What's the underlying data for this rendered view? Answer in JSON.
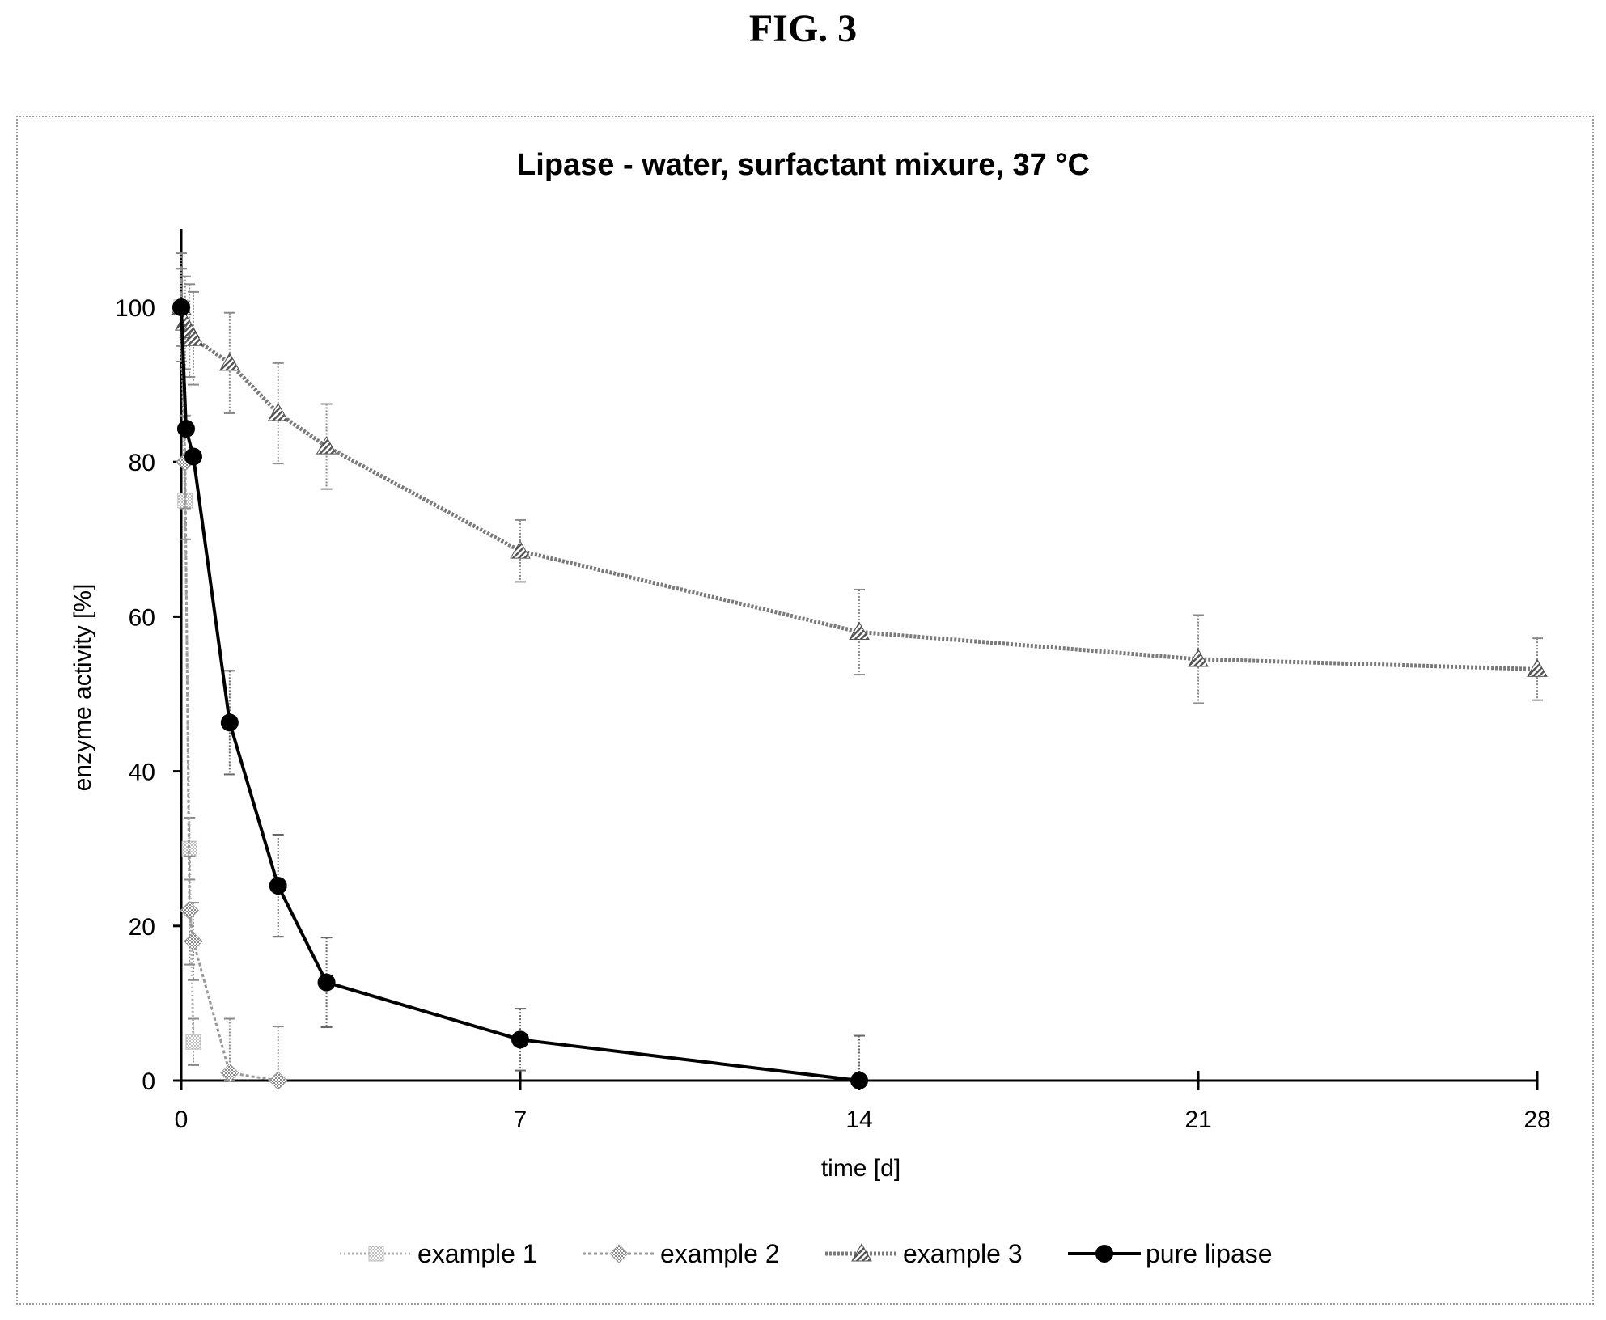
{
  "figure_label": "FIG. 3",
  "chart_data": {
    "type": "line",
    "title": "Lipase - water, surfactant mixure, 37 °C",
    "xlabel": "time [d]",
    "ylabel": "enzyme activity [%]",
    "xlim": [
      0,
      28
    ],
    "ylim": [
      0,
      110
    ],
    "xticks": [
      0,
      7,
      14,
      21,
      28
    ],
    "yticks": [
      0,
      20,
      40,
      60,
      80,
      100
    ],
    "legend_position": "bottom",
    "grid": false,
    "series": [
      {
        "name": "example 1",
        "color": "#bdbdbd",
        "marker": "square-hatched",
        "line": "dotted",
        "x": [
          0,
          0.08,
          0.17,
          0.25
        ],
        "y": [
          100,
          75,
          30,
          5
        ],
        "err": [
          5,
          5,
          4,
          3
        ]
      },
      {
        "name": "example 2",
        "color": "#a8a8a8",
        "marker": "diamond-hatched",
        "line": "dashed",
        "x": [
          0,
          0.08,
          0.17,
          0.25,
          1,
          2
        ],
        "y": [
          100,
          80,
          22,
          18,
          1,
          0
        ],
        "err": [
          5,
          6,
          7,
          5,
          7,
          7
        ]
      },
      {
        "name": "example 3",
        "color": "#7a7a7a",
        "marker": "triangle-hatched",
        "line": "hatched",
        "x": [
          0,
          0.08,
          0.17,
          0.25,
          1,
          2,
          3,
          7,
          14,
          21,
          28
        ],
        "y": [
          100,
          98,
          97,
          96,
          92.8,
          86.3,
          82,
          68.5,
          58,
          54.5,
          53.2
        ],
        "err": [
          7,
          6,
          6,
          6,
          6.5,
          6.5,
          5.5,
          4,
          5.5,
          5.7,
          4
        ]
      },
      {
        "name": "pure lipase",
        "color": "#000000",
        "marker": "circle",
        "line": "solid",
        "x": [
          0,
          0.1,
          0.25,
          1,
          2,
          3,
          7,
          14
        ],
        "y": [
          100,
          84.3,
          80.7,
          46.3,
          25.2,
          12.7,
          5.3,
          0
        ],
        "err": [
          0,
          0,
          0,
          6.7,
          6.6,
          5.8,
          4,
          5.8
        ]
      }
    ]
  }
}
